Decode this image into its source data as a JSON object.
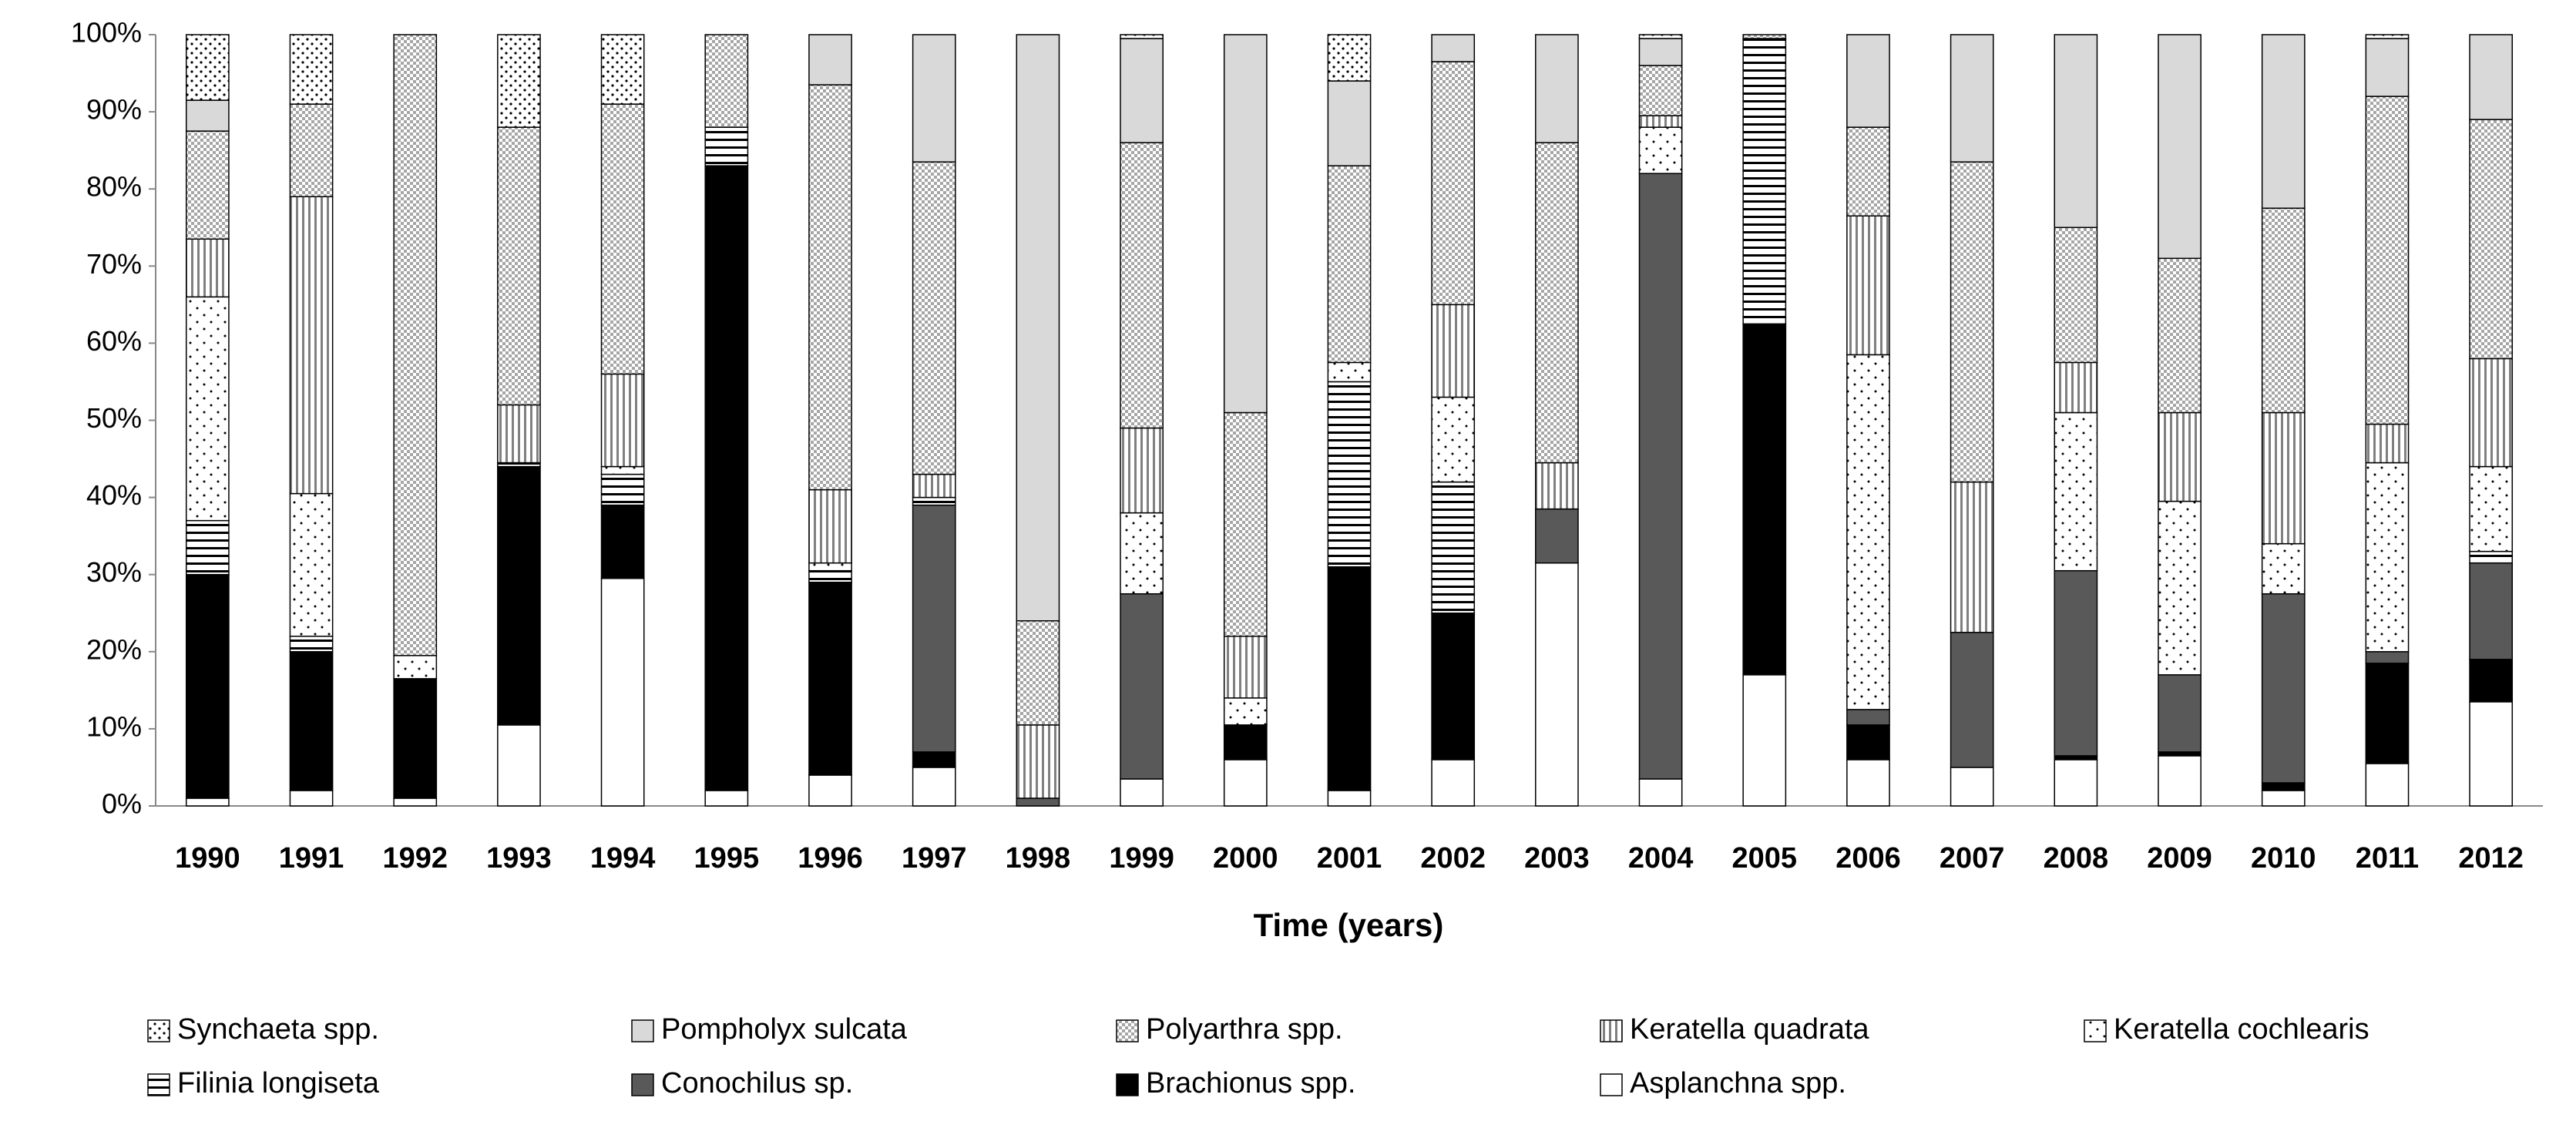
{
  "chart_data": {
    "type": "stacked-bar",
    "x_label": "Time (years)",
    "categories": [
      "1990",
      "1991",
      "1992",
      "1993",
      "1994",
      "1995",
      "1996",
      "1997",
      "1998",
      "1999",
      "2000",
      "2001",
      "2002",
      "2003",
      "2004",
      "2005",
      "2006",
      "2007",
      "2008",
      "2009",
      "2010",
      "2011",
      "2012"
    ],
    "ylim": [
      0,
      100
    ],
    "yticks": [
      {
        "value": 0,
        "label": "0%"
      },
      {
        "value": 10,
        "label": "10%"
      },
      {
        "value": 20,
        "label": "20%"
      },
      {
        "value": 30,
        "label": "30%"
      },
      {
        "value": 40,
        "label": "40%"
      },
      {
        "value": 50,
        "label": "50%"
      },
      {
        "value": 60,
        "label": "60%"
      },
      {
        "value": 70,
        "label": "70%"
      },
      {
        "value": 80,
        "label": "80%"
      },
      {
        "value": 90,
        "label": "90%"
      },
      {
        "value": 100,
        "label": "100%"
      }
    ],
    "series": [
      {
        "name": "Synchaeta spp.",
        "color": "#ffffff",
        "pattern": "dense-dots",
        "values": [
          8.5,
          9,
          0,
          12,
          9,
          0,
          0,
          0,
          0,
          0.5,
          0,
          6,
          0,
          0,
          0.5,
          0,
          0,
          0,
          0,
          0,
          0,
          0.5,
          0
        ]
      },
      {
        "name": "Pompholyx sulcata",
        "color": "#d9d9d9",
        "pattern": "solid",
        "values": [
          4,
          0,
          0,
          0,
          0,
          0,
          6.5,
          16.5,
          76,
          13.5,
          49,
          11,
          3.5,
          14,
          3.5,
          0,
          12,
          16.5,
          25,
          29,
          22.5,
          7.5,
          11
        ]
      },
      {
        "name": "Polyarthra spp.",
        "color": "#a6a6a6",
        "pattern": "crosshatch",
        "values": [
          14,
          12,
          80.5,
          36,
          35,
          12,
          52.5,
          40.5,
          13.5,
          37,
          29,
          25.5,
          31.5,
          41.5,
          6.5,
          0.5,
          11.5,
          41.5,
          17.5,
          20,
          26.5,
          42.5,
          31
        ]
      },
      {
        "name": "Keratella quadrata",
        "color": "#808080",
        "pattern": "vertical",
        "values": [
          7.5,
          38.5,
          0,
          7.5,
          12,
          0,
          9.5,
          3,
          9.5,
          11,
          8,
          0,
          12,
          6,
          1.5,
          0,
          18,
          19.5,
          6.5,
          11.5,
          17,
          5,
          14
        ]
      },
      {
        "name": "Keratella cochlearis",
        "color": "#ffffff",
        "pattern": "sparse-dots",
        "values": [
          29,
          18.5,
          3,
          0,
          1,
          0,
          1,
          0,
          0,
          10.5,
          3.5,
          2.5,
          11,
          0,
          6,
          0,
          46,
          0,
          20.5,
          22.5,
          6.5,
          24.5,
          11
        ]
      },
      {
        "name": "Filinia longiseta",
        "color": "#000000",
        "pattern": "horizontal",
        "values": [
          7,
          2,
          0,
          0.5,
          4,
          5,
          1.5,
          1,
          0,
          0,
          0,
          24,
          17,
          0,
          0,
          37,
          0,
          0,
          0,
          0,
          0,
          0,
          1.5
        ]
      },
      {
        "name": "Conochilus sp.",
        "color": "#595959",
        "pattern": "solid",
        "values": [
          0,
          0,
          0,
          0,
          0,
          0,
          0,
          32,
          1,
          24,
          0,
          0,
          0,
          7,
          78.5,
          0,
          2,
          17.5,
          24,
          10,
          24.5,
          1.5,
          12.5
        ]
      },
      {
        "name": "Brachionus spp.",
        "color": "#000000",
        "pattern": "solid",
        "values": [
          29,
          18,
          15.5,
          33.5,
          9.5,
          81,
          25,
          2,
          0,
          0,
          4.5,
          29,
          19,
          0,
          0,
          45.5,
          4.5,
          0,
          0.5,
          0.5,
          1,
          13,
          5.5
        ]
      },
      {
        "name": "Asplanchna spp.",
        "color": "#ffffff",
        "pattern": "solid",
        "values": [
          1,
          2,
          1,
          10.5,
          29.5,
          2,
          4,
          5,
          0,
          3.5,
          6,
          2,
          6,
          31.5,
          3.5,
          17,
          6,
          5,
          6,
          6.5,
          2,
          5.5,
          13.5
        ]
      }
    ]
  }
}
